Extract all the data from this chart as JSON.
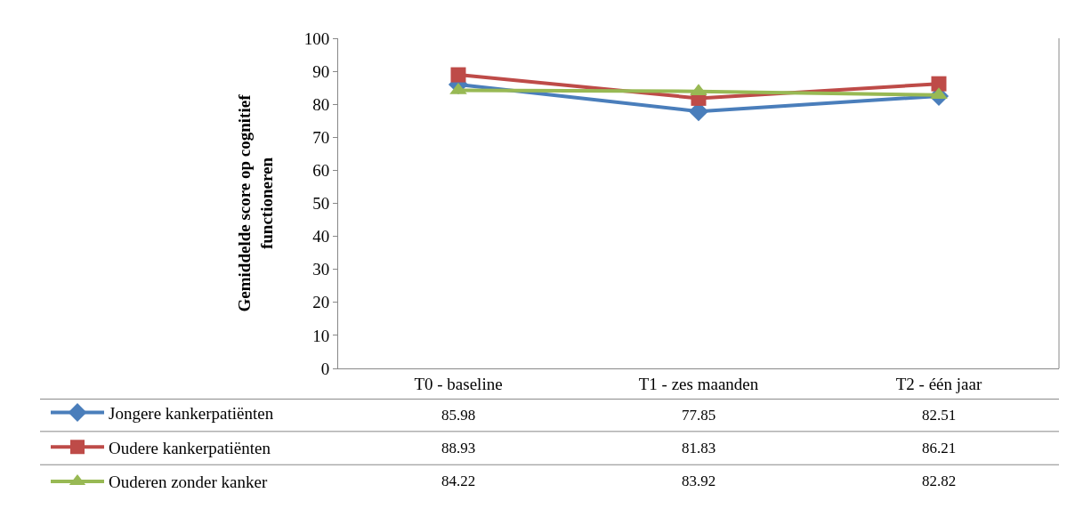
{
  "chart_data": {
    "type": "line",
    "ylabel": "Gemiddelde score op cognitief\nfunctioneren",
    "categories": [
      "T0 - baseline",
      "T1 - zes maanden",
      "T2 - één jaar"
    ],
    "series": [
      {
        "name": "Jongere kankerpatiënten",
        "color": "#4a7ebb",
        "marker": "diamond",
        "values": [
          85.98,
          77.85,
          82.51
        ]
      },
      {
        "name": "Oudere kankerpatiënten",
        "color": "#be4b48",
        "marker": "square",
        "values": [
          88.93,
          81.83,
          86.21
        ]
      },
      {
        "name": "Ouderen zonder kanker",
        "color": "#98b954",
        "marker": "triangle",
        "values": [
          84.22,
          83.92,
          82.82
        ]
      }
    ],
    "ylim": [
      0,
      100
    ],
    "yticks": [
      0,
      10,
      20,
      30,
      40,
      50,
      60,
      70,
      80,
      90,
      100
    ],
    "legend": "bottom",
    "data_labels": true,
    "line_style": "solid"
  }
}
